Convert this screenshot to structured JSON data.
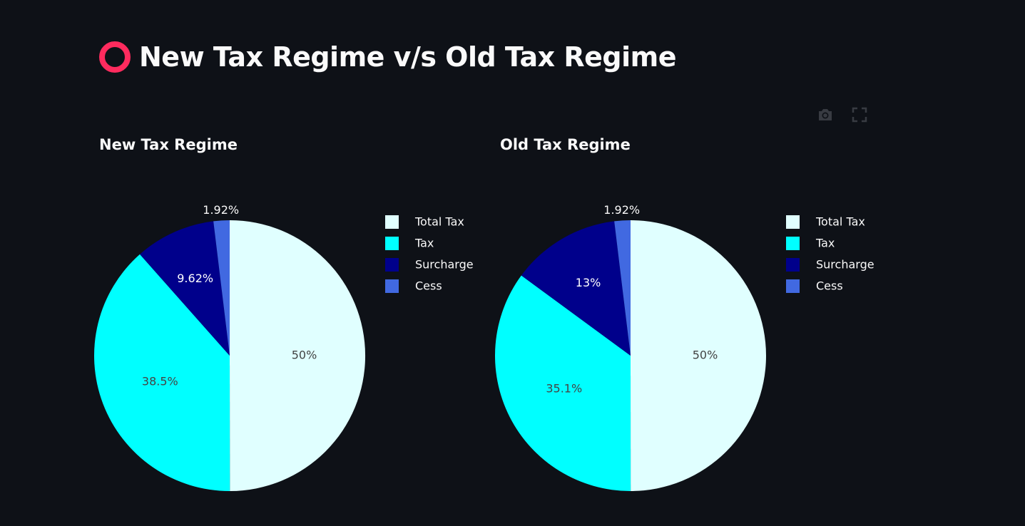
{
  "page": {
    "title": "New Tax Regime v/s Old Tax Regime",
    "title_icon": "red-circle-icon",
    "accent_color": "#ff2b5e",
    "background": "#0e1117"
  },
  "modebar": {
    "icons": [
      "camera-icon",
      "fullscreen-icon"
    ]
  },
  "chart_data": [
    {
      "type": "pie",
      "title": "New Tax Regime",
      "labels": [
        "Total Tax",
        "Tax",
        "Surcharge",
        "Cess"
      ],
      "values": [
        50,
        38.5,
        9.62,
        1.92
      ],
      "value_labels": [
        "50%",
        "38.5%",
        "9.62%",
        "1.92%"
      ],
      "colors": [
        "#e0ffff",
        "#00ffff",
        "#00008b",
        "#4169e1"
      ],
      "legend": "right"
    },
    {
      "type": "pie",
      "title": "Old Tax Regime",
      "labels": [
        "Total Tax",
        "Tax",
        "Surcharge",
        "Cess"
      ],
      "values": [
        50,
        35.1,
        13,
        1.92
      ],
      "value_labels": [
        "50%",
        "35.1%",
        "13%",
        "1.92%"
      ],
      "colors": [
        "#e0ffff",
        "#00ffff",
        "#00008b",
        "#4169e1"
      ],
      "legend": "right"
    }
  ]
}
